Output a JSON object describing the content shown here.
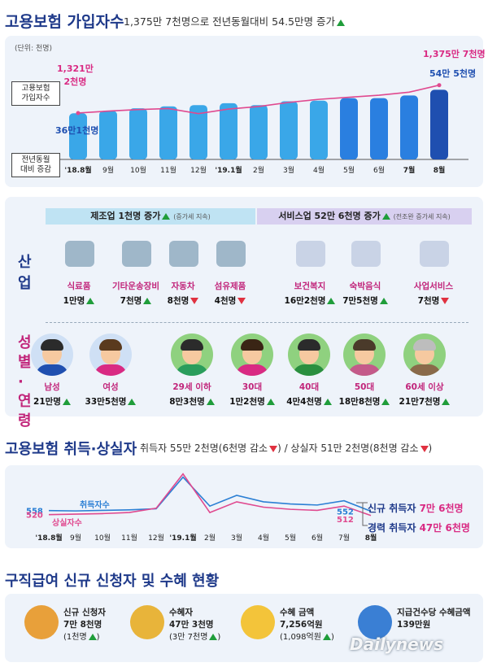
{
  "colors": {
    "navy": "#1f3a8a",
    "magenta": "#d92a83",
    "blue": "#2b7fd4",
    "up": "#1f9d3a",
    "down": "#e03140"
  },
  "section1": {
    "title": "고용보험 가입자수",
    "subtitle": "1,375만 7천명으로 전년동월대비 54.5만명 증가",
    "unit": "(단위: 천명)",
    "label_subscribers": "고용보험\n가입자수",
    "label_yoy": "전년동월\n대비 증감",
    "start_value": "1,321만\n2천명",
    "end_value": "1,375만 7천명",
    "start_bar": "36만1천명",
    "end_bar": "54만 5천명"
  },
  "chart_data": [
    {
      "type": "bar",
      "title": "고용보험 가입자수",
      "categories": [
        "'18.8월",
        "9월",
        "10월",
        "11월",
        "12월",
        "'19.1월",
        "2월",
        "3월",
        "4월",
        "5월",
        "6월",
        "7월",
        "8월"
      ],
      "series": [
        {
          "name": "전년동월 대비 증감",
          "values": [
            361,
            380,
            400,
            415,
            425,
            440,
            425,
            455,
            460,
            480,
            480,
            500,
            545
          ]
        },
        {
          "name": "고용보험 가입자수",
          "values": [
            13212,
            13250,
            13280,
            13300,
            13200,
            13290,
            13340,
            13420,
            13480,
            13520,
            13560,
            13620,
            13757
          ]
        }
      ]
    },
    {
      "type": "line",
      "title": "고용보험 취득·상실자",
      "categories": [
        "'18.8월",
        "9월",
        "10월",
        "11월",
        "12월",
        "'19.1월",
        "2월",
        "3월",
        "4월",
        "5월",
        "6월",
        "7월",
        "8월"
      ],
      "series": [
        {
          "name": "취득자수",
          "values": [
            558,
            555,
            560,
            565,
            575,
            870,
            600,
            700,
            640,
            620,
            610,
            650,
            552
          ]
        },
        {
          "name": "상실자수",
          "values": [
            520,
            525,
            530,
            540,
            580,
            900,
            540,
            640,
            590,
            570,
            560,
            600,
            512
          ]
        }
      ]
    }
  ],
  "industry": {
    "side_label": "산업",
    "mfg_header": "제조업 1천명 증가",
    "mfg_note": "(증가세 지속)",
    "svc_header": "서비스업 52만 6천명 증가",
    "svc_note": "(전조완 증가세 지속)",
    "items": [
      {
        "name": "식료품",
        "value": "1만명",
        "dir": "up"
      },
      {
        "name": "기타운송장비",
        "value": "7천명",
        "dir": "up"
      },
      {
        "name": "자동차",
        "value": "8천명",
        "dir": "down"
      },
      {
        "name": "섬유제품",
        "value": "4천명",
        "dir": "down"
      },
      {
        "name": "보건복지",
        "value": "16만2천명",
        "dir": "up"
      },
      {
        "name": "숙박음식",
        "value": "7만5천명",
        "dir": "up"
      },
      {
        "name": "사업서비스",
        "value": "7천명",
        "dir": "down"
      }
    ]
  },
  "demo": {
    "side_label": "성별·연령",
    "items": [
      {
        "name": "남성",
        "value": "21만명",
        "dir": "up"
      },
      {
        "name": "여성",
        "value": "33만5천명",
        "dir": "up"
      },
      {
        "name": "29세 이하",
        "value": "8만3천명",
        "dir": "up"
      },
      {
        "name": "30대",
        "value": "1만2천명",
        "dir": "up"
      },
      {
        "name": "40대",
        "value": "4만4천명",
        "dir": "up"
      },
      {
        "name": "50대",
        "value": "18만8천명",
        "dir": "up"
      },
      {
        "name": "60세 이상",
        "value": "21만7천명",
        "dir": "up"
      }
    ]
  },
  "section2": {
    "title": "고용보험 취득·상실자",
    "subtitle_a": "취득자 55만 2천명",
    "subtitle_a2": "(6천명 감소",
    "subtitle_b": "/ 상실자 51만 2천명",
    "subtitle_b2": "(8천명 감소",
    "start_acq": "558",
    "start_loss": "520",
    "end_acq": "552",
    "end_loss": "512",
    "series_acq_label": "취득자수",
    "series_loss_label": "상실자수",
    "new_label": "신규 취득자",
    "new_value": "7만 6천명",
    "career_label": "경력 취득자",
    "career_value": "47만 6천명"
  },
  "section3": {
    "title": "구직급여 신규 신청자 및 수혜 현황",
    "items": [
      {
        "name": "신규 신청자",
        "value": "7만 8천명",
        "sub": "(1천명"
      },
      {
        "name": "수혜자",
        "value": "47만 3천명",
        "sub": "(3만 7천명"
      },
      {
        "name": "수혜 금액",
        "value": "7,256억원",
        "sub": "(1,098억원"
      },
      {
        "name": "지급건수당 수혜금액",
        "value": "139만원",
        "sub": ""
      }
    ],
    "watermark": "Dailynews"
  }
}
